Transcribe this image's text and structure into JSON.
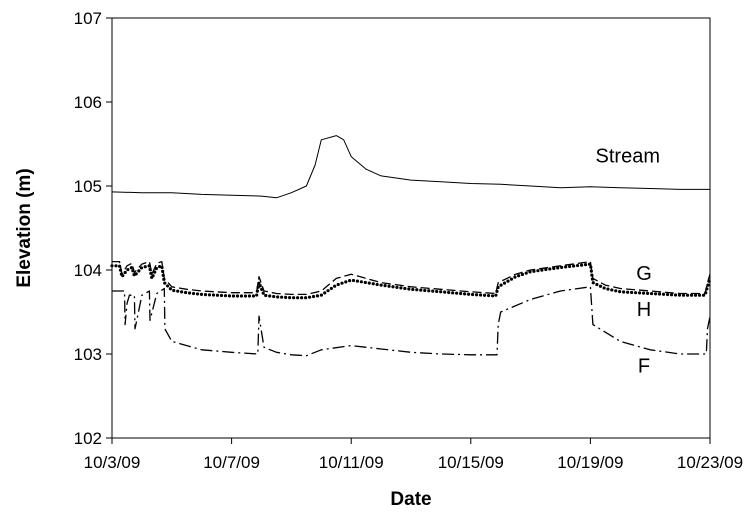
{
  "chart_data": {
    "type": "line",
    "title": "",
    "xlabel": "Date",
    "ylabel": "Elevation (m)",
    "ylim": [
      102,
      107
    ],
    "xlim": [
      "10/3/09",
      "10/23/09"
    ],
    "x_ticks": [
      "10/3/09",
      "10/7/09",
      "10/11/09",
      "10/15/09",
      "10/19/09",
      "10/23/09"
    ],
    "y_ticks": [
      "102",
      "103",
      "104",
      "105",
      "106",
      "107"
    ],
    "grid": false,
    "legend": "none",
    "series": [
      {
        "name": "Stream",
        "style": "solid",
        "color": "#000000",
        "x": [
          "10/3/09",
          "10/4/09",
          "10/5/09",
          "10/6/09",
          "10/7/09",
          "10/8/09",
          "10/8/09 12:00",
          "10/9/09",
          "10/9/09 12:00",
          "10/9/09 19:00",
          "10/10/09",
          "10/10/09 12:00",
          "10/10/09 18:00",
          "10/11/09",
          "10/11/09 12:00",
          "10/12/09",
          "10/13/09",
          "10/14/09",
          "10/15/09",
          "10/16/09",
          "10/17/09",
          "10/18/09",
          "10/19/09",
          "10/20/09",
          "10/21/09",
          "10/22/09",
          "10/23/09"
        ],
        "y": [
          104.93,
          104.92,
          104.92,
          104.9,
          104.89,
          104.88,
          104.86,
          104.92,
          105.0,
          105.25,
          105.55,
          105.6,
          105.55,
          105.35,
          105.2,
          105.12,
          105.07,
          105.05,
          105.03,
          105.02,
          105.0,
          104.98,
          104.99,
          104.98,
          104.97,
          104.96,
          104.96
        ]
      },
      {
        "name": "G",
        "style": "dashed",
        "color": "#000000",
        "x": [
          "10/3/09",
          "10/3/09 06:00",
          "10/3/09 08:00",
          "10/3/09 12:00",
          "10/3/09 16:00",
          "10/3/09 18:00",
          "10/4/09",
          "10/4/09 06:00",
          "10/4/09 08:00",
          "10/4/09 12:00",
          "10/4/09 16:00",
          "10/4/09 18:00",
          "10/5/09",
          "10/5/09 12:00",
          "10/6/09",
          "10/7/09",
          "10/7/09 20:00",
          "10/7/09 22:00",
          "10/8/09 02:00",
          "10/8/09 12:00",
          "10/9/09",
          "10/9/09 12:00",
          "10/10/09",
          "10/10/09 12:00",
          "10/11/09",
          "10/12/09",
          "10/13/09",
          "10/14/09",
          "10/15/09",
          "10/15/09 20:00",
          "10/15/09 22:00",
          "10/16/09 12:00",
          "10/17/09",
          "10/18/09",
          "10/19/09",
          "10/19/09 02:00",
          "10/19/09 12:00",
          "10/20/09",
          "10/21/09",
          "10/22/09",
          "10/22/09 20:00",
          "10/22/09 22:00",
          "10/23/09"
        ],
        "y": [
          104.1,
          104.1,
          103.95,
          104.05,
          104.08,
          103.97,
          104.07,
          104.1,
          103.95,
          104.08,
          104.1,
          103.9,
          103.8,
          103.77,
          103.75,
          103.73,
          103.73,
          103.92,
          103.75,
          103.72,
          103.71,
          103.71,
          103.75,
          103.9,
          103.95,
          103.85,
          103.8,
          103.77,
          103.74,
          103.72,
          103.85,
          103.95,
          104.0,
          104.05,
          104.1,
          103.9,
          103.82,
          103.78,
          103.75,
          103.72,
          103.72,
          103.85,
          103.95
        ]
      },
      {
        "name": "H",
        "style": "dotted",
        "color": "#000000",
        "x": [
          "10/3/09",
          "10/3/09 06:00",
          "10/3/09 08:00",
          "10/3/09 12:00",
          "10/3/09 16:00",
          "10/3/09 18:00",
          "10/4/09",
          "10/4/09 06:00",
          "10/4/09 08:00",
          "10/4/09 12:00",
          "10/4/09 16:00",
          "10/4/09 18:00",
          "10/5/09",
          "10/5/09 12:00",
          "10/6/09",
          "10/7/09",
          "10/7/09 20:00",
          "10/7/09 22:00",
          "10/8/09 02:00",
          "10/8/09 12:00",
          "10/9/09",
          "10/9/09 12:00",
          "10/10/09",
          "10/10/09 12:00",
          "10/11/09",
          "10/12/09",
          "10/13/09",
          "10/14/09",
          "10/15/09",
          "10/15/09 20:00",
          "10/15/09 22:00",
          "10/16/09 12:00",
          "10/17/09",
          "10/18/09",
          "10/19/09",
          "10/19/09 02:00",
          "10/19/09 12:00",
          "10/20/09",
          "10/21/09",
          "10/22/09",
          "10/22/09 20:00",
          "10/22/09 22:00",
          "10/23/09"
        ],
        "y": [
          104.05,
          104.05,
          103.92,
          104.0,
          104.03,
          103.93,
          104.03,
          104.05,
          103.9,
          104.03,
          104.05,
          103.85,
          103.76,
          103.73,
          103.71,
          103.69,
          103.69,
          103.85,
          103.7,
          103.68,
          103.67,
          103.67,
          103.7,
          103.82,
          103.88,
          103.82,
          103.77,
          103.74,
          103.71,
          103.69,
          103.8,
          103.92,
          103.98,
          104.03,
          104.07,
          103.85,
          103.78,
          103.74,
          103.72,
          103.7,
          103.7,
          103.8,
          103.9
        ]
      },
      {
        "name": "F",
        "style": "dashdot",
        "color": "#000000",
        "x": [
          "10/3/09",
          "10/3/09 10:00",
          "10/3/09 10:30",
          "10/3/09 12:00",
          "10/3/09 14:00",
          "10/3/09 18:00",
          "10/3/09 18:30",
          "10/4/09",
          "10/4/09 06:00",
          "10/4/09 06:30",
          "10/4/09 12:00",
          "10/4/09 18:00",
          "10/4/09 18:30",
          "10/5/09",
          "10/6/09",
          "10/7/09",
          "10/7/09 21:00",
          "10/7/09 22:00",
          "10/8/09 02:00",
          "10/8/09 12:00",
          "10/9/09",
          "10/9/09 12:00",
          "10/10/09",
          "10/11/09",
          "10/12/09",
          "10/13/09",
          "10/14/09",
          "10/15/09",
          "10/15/09 21:00",
          "10/15/09 22:00",
          "10/16/09",
          "10/17/09",
          "10/18/09",
          "10/19/09",
          "10/19/09 02:00",
          "10/20/09",
          "10/21/09",
          "10/22/09",
          "10/22/09 21:00",
          "10/22/09 22:00",
          "10/23/09"
        ],
        "y": [
          103.75,
          103.75,
          103.35,
          103.6,
          103.7,
          103.7,
          103.3,
          103.7,
          103.75,
          103.4,
          103.72,
          103.78,
          103.3,
          103.15,
          103.05,
          103.02,
          103.0,
          103.45,
          103.08,
          103.02,
          102.99,
          102.98,
          103.05,
          103.1,
          103.06,
          103.02,
          103.0,
          102.99,
          102.99,
          103.35,
          103.5,
          103.65,
          103.75,
          103.8,
          103.35,
          103.15,
          103.05,
          103.0,
          103.0,
          103.3,
          103.45
        ]
      }
    ],
    "annotations": [
      {
        "text": "Stream",
        "series": "Stream",
        "x": "10/20/09 06:00",
        "y": 105.28
      },
      {
        "text": "G",
        "series": "G",
        "x": "10/20/09 19:00",
        "y": 103.88
      },
      {
        "text": "H",
        "series": "H",
        "x": "10/20/09 19:00",
        "y": 103.45
      },
      {
        "text": "F",
        "series": "F",
        "x": "10/20/09 19:00",
        "y": 102.78
      }
    ]
  }
}
